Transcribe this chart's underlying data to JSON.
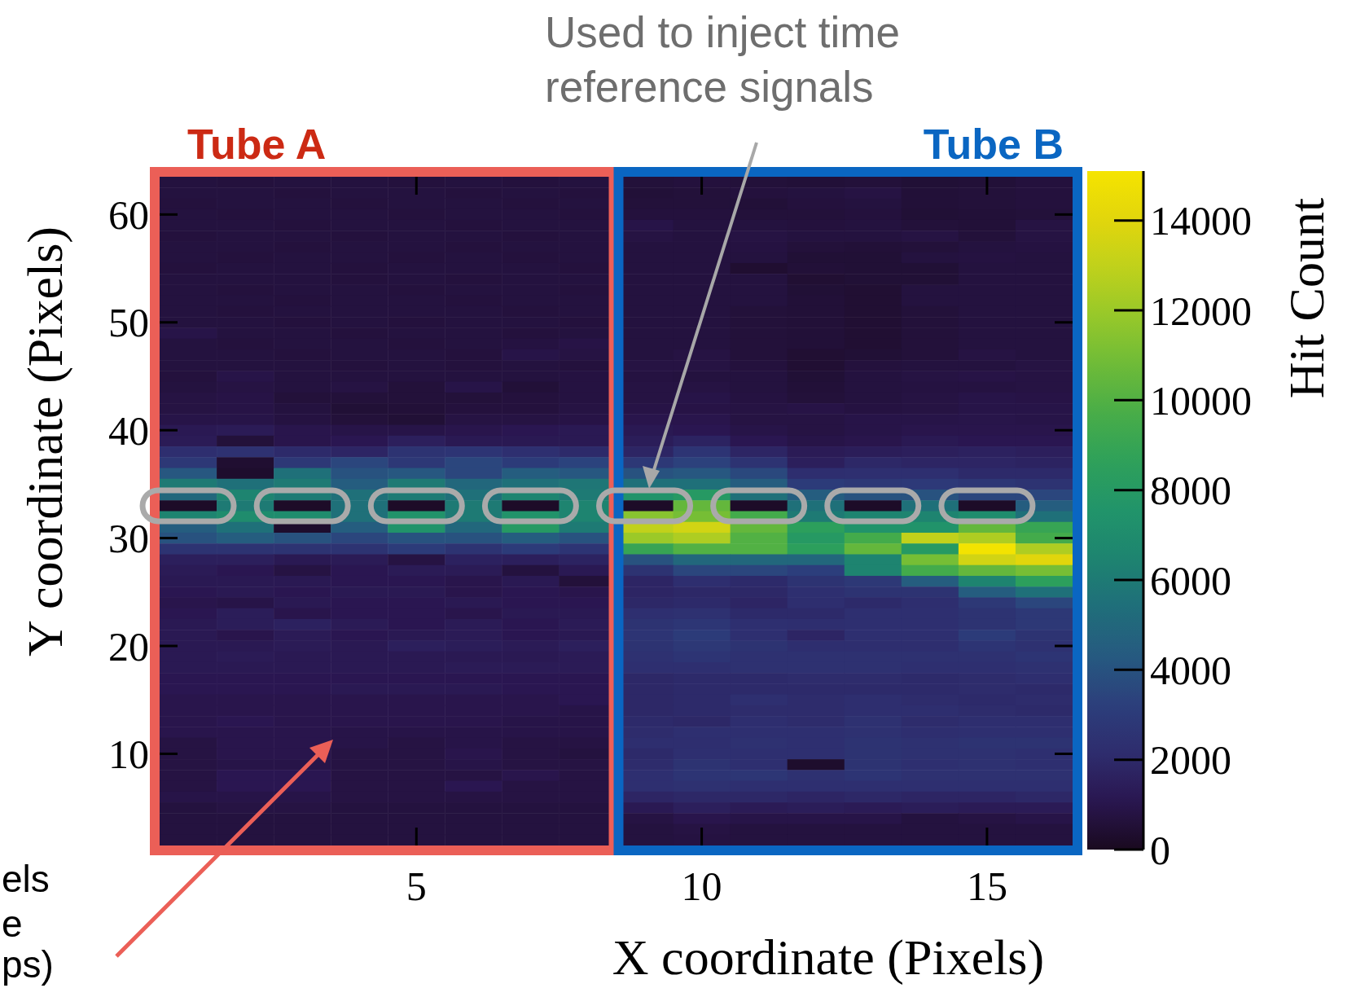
{
  "chart_data": {
    "type": "heatmap",
    "xlabel": "X coordinate (Pixels)",
    "ylabel": "Y coordinate (Pixels)",
    "clabel": "Hit Count",
    "annotations": [
      "Tube A",
      "Tube B",
      "Used to inject time reference signals",
      "els",
      "e",
      "ps)"
    ],
    "categories": [
      null,
      null,
      null,
      null,
      "5",
      null,
      null,
      null,
      null,
      "10",
      null,
      null,
      null,
      null,
      "15",
      null
    ],
    "y_categories": [
      null,
      null,
      null,
      "60",
      null,
      null,
      null,
      null,
      null,
      null,
      null,
      null,
      null,
      "50",
      null,
      null,
      null,
      null,
      null,
      null,
      null,
      null,
      null,
      "40",
      null,
      null,
      null,
      null,
      null,
      null,
      null,
      null,
      null,
      "30",
      null,
      null,
      null,
      null,
      null,
      null,
      null,
      null,
      null,
      "20",
      null,
      null,
      null,
      null,
      null,
      null,
      null,
      null,
      null,
      "10",
      null,
      null,
      null,
      null,
      null,
      null,
      null,
      null
    ],
    "clim": [
      0,
      15100
    ],
    "cticks": [
      0,
      2000,
      4000,
      6000,
      8000,
      10000,
      12000,
      14000
    ],
    "cells": [
      [
        700,
        650,
        700,
        700,
        650,
        700,
        650,
        700,
        600,
        650,
        600,
        550,
        600,
        500,
        550,
        650
      ],
      [
        700,
        700,
        650,
        700,
        700,
        650,
        700,
        650,
        550,
        600,
        650,
        700,
        800,
        550,
        600,
        650
      ],
      [
        650,
        700,
        700,
        650,
        700,
        700,
        650,
        700,
        600,
        600,
        550,
        650,
        700,
        550,
        600,
        650
      ],
      [
        700,
        650,
        700,
        700,
        650,
        700,
        700,
        650,
        650,
        650,
        600,
        600,
        650,
        500,
        550,
        600
      ],
      [
        700,
        700,
        650,
        700,
        700,
        650,
        700,
        700,
        900,
        700,
        700,
        650,
        700,
        600,
        550,
        800
      ],
      [
        650,
        700,
        700,
        650,
        700,
        700,
        650,
        700,
        800,
        700,
        800,
        700,
        700,
        800,
        600,
        800
      ],
      [
        700,
        700,
        650,
        700,
        700,
        650,
        700,
        700,
        700,
        700,
        750,
        600,
        550,
        600,
        700,
        750
      ],
      [
        700,
        650,
        700,
        700,
        650,
        700,
        650,
        700,
        700,
        700,
        700,
        500,
        500,
        700,
        750,
        700
      ],
      [
        650,
        700,
        700,
        650,
        700,
        700,
        700,
        650,
        700,
        700,
        400,
        550,
        500,
        500,
        700,
        700
      ],
      [
        700,
        700,
        700,
        650,
        700,
        650,
        700,
        700,
        700,
        700,
        700,
        450,
        500,
        500,
        700,
        700
      ],
      [
        700,
        650,
        700,
        700,
        650,
        700,
        700,
        650,
        700,
        700,
        700,
        500,
        450,
        700,
        700,
        700
      ],
      [
        700,
        700,
        650,
        700,
        700,
        650,
        700,
        700,
        700,
        700,
        700,
        550,
        450,
        700,
        700,
        700
      ],
      [
        700,
        650,
        700,
        700,
        700,
        700,
        650,
        700,
        700,
        700,
        600,
        550,
        450,
        600,
        700,
        700
      ],
      [
        700,
        700,
        650,
        700,
        650,
        700,
        700,
        650,
        700,
        700,
        600,
        550,
        450,
        600,
        700,
        700
      ],
      [
        900,
        700,
        700,
        650,
        700,
        700,
        650,
        700,
        700,
        700,
        600,
        550,
        450,
        600,
        700,
        700
      ],
      [
        700,
        650,
        700,
        700,
        650,
        700,
        750,
        850,
        700,
        700,
        600,
        550,
        450,
        600,
        700,
        700
      ],
      [
        700,
        700,
        650,
        700,
        700,
        650,
        900,
        800,
        700,
        800,
        600,
        450,
        500,
        600,
        800,
        700
      ],
      [
        700,
        700,
        700,
        650,
        700,
        650,
        700,
        650,
        800,
        800,
        650,
        450,
        650,
        700,
        700,
        800
      ],
      [
        650,
        900,
        700,
        700,
        700,
        700,
        700,
        750,
        750,
        700,
        700,
        500,
        700,
        800,
        850,
        800
      ],
      [
        700,
        800,
        700,
        800,
        600,
        900,
        550,
        750,
        800,
        800,
        700,
        550,
        700,
        750,
        750,
        800
      ],
      [
        800,
        850,
        600,
        600,
        600,
        600,
        650,
        750,
        800,
        900,
        750,
        600,
        700,
        800,
        900,
        850
      ],
      [
        800,
        850,
        700,
        500,
        550,
        650,
        650,
        800,
        850,
        850,
        800,
        850,
        750,
        800,
        900,
        900
      ],
      [
        900,
        900,
        750,
        600,
        500,
        800,
        800,
        850,
        1000,
        1000,
        800,
        800,
        900,
        900,
        950,
        900
      ],
      [
        1200,
        1300,
        1000,
        900,
        900,
        1000,
        1100,
        1200,
        1200,
        1100,
        900,
        800,
        900,
        1000,
        1000,
        1000
      ],
      [
        1300,
        600,
        1000,
        1100,
        1500,
        1200,
        1200,
        1200,
        1400,
        1700,
        1100,
        900,
        1000,
        1200,
        1100,
        1100
      ],
      [
        2200,
        2400,
        2000,
        1800,
        2500,
        2600,
        2300,
        2000,
        1800,
        2600,
        1800,
        1300,
        1400,
        1500,
        1600,
        1500
      ],
      [
        2800,
        400,
        2800,
        3500,
        2800,
        3500,
        3000,
        3400,
        2800,
        3300,
        2500,
        1500,
        1900,
        1800,
        1800,
        1700
      ],
      [
        4200,
        300,
        5500,
        4000,
        4200,
        3500,
        4500,
        4200,
        4000,
        4200,
        3600,
        2200,
        2300,
        2300,
        2000,
        2000
      ],
      [
        6000,
        5500,
        6000,
        4500,
        6000,
        5000,
        5500,
        5800,
        5500,
        5500,
        4500,
        3000,
        2800,
        2900,
        2700,
        2500
      ],
      [
        5000,
        6500,
        6000,
        5500,
        6000,
        5500,
        6500,
        6000,
        7500,
        8000,
        5500,
        4500,
        4000,
        4000,
        3500,
        3500
      ],
      [
        200,
        6000,
        200,
        5500,
        200,
        6000,
        200,
        6500,
        200,
        10500,
        200,
        5500,
        200,
        5500,
        200,
        4500
      ],
      [
        6500,
        7000,
        7000,
        5500,
        7500,
        6000,
        7500,
        6500,
        11500,
        11000,
        9500,
        6000,
        6500,
        6500,
        7000,
        5500
      ],
      [
        4500,
        5500,
        300,
        4500,
        7500,
        5000,
        8000,
        6000,
        13000,
        13500,
        10500,
        8500,
        7500,
        7500,
        10500,
        9000
      ],
      [
        4000,
        4500,
        4000,
        3500,
        4000,
        4000,
        4500,
        4000,
        12000,
        12500,
        10000,
        8000,
        9500,
        13000,
        12500,
        9500
      ],
      [
        2500,
        2500,
        2500,
        2500,
        3000,
        2500,
        3000,
        2600,
        9000,
        10000,
        10000,
        8500,
        10500,
        8000,
        15000,
        12500
      ],
      [
        1500,
        1500,
        1200,
        1300,
        800,
        1600,
        1500,
        1700,
        4000,
        5000,
        5000,
        5000,
        6500,
        11000,
        13500,
        14000
      ],
      [
        1300,
        1100,
        800,
        1100,
        1300,
        1300,
        700,
        1200,
        2500,
        3500,
        3500,
        3200,
        6500,
        9500,
        10500,
        11000
      ],
      [
        1200,
        1200,
        1200,
        1100,
        1100,
        1000,
        1200,
        600,
        1800,
        2200,
        2000,
        2500,
        2800,
        4500,
        6500,
        8500
      ],
      [
        1100,
        1200,
        1100,
        1200,
        1200,
        1000,
        1100,
        1000,
        1800,
        1900,
        1900,
        2300,
        2500,
        2500,
        4500,
        5500
      ],
      [
        1000,
        900,
        1200,
        1100,
        1100,
        1200,
        1100,
        1100,
        1900,
        2000,
        1800,
        2200,
        2000,
        2200,
        2800,
        3500
      ],
      [
        1100,
        1400,
        1000,
        1100,
        1100,
        1000,
        1200,
        1200,
        2300,
        2400,
        2000,
        2000,
        2300,
        2300,
        2500,
        2800
      ],
      [
        1200,
        1400,
        1600,
        1300,
        1100,
        1300,
        1100,
        1300,
        2500,
        2700,
        2300,
        2200,
        2300,
        2300,
        2500,
        2800
      ],
      [
        1200,
        1000,
        1300,
        1100,
        1200,
        1300,
        1100,
        1200,
        2600,
        3000,
        2300,
        1800,
        2300,
        2300,
        3000,
        2500
      ],
      [
        1200,
        1200,
        1300,
        1200,
        1500,
        1400,
        1300,
        1500,
        2500,
        2800,
        2500,
        2200,
        2200,
        2200,
        2600,
        2400
      ],
      [
        1200,
        1300,
        1200,
        1200,
        1200,
        1200,
        1200,
        1300,
        2400,
        2600,
        2400,
        2400,
        2400,
        2400,
        2400,
        2600
      ],
      [
        1200,
        1200,
        1200,
        1200,
        1200,
        1300,
        1300,
        1300,
        2300,
        2300,
        2400,
        2400,
        2400,
        2300,
        2300,
        2400
      ],
      [
        1100,
        1100,
        1100,
        1100,
        1100,
        1100,
        1100,
        1100,
        1900,
        2000,
        2000,
        2100,
        2100,
        2000,
        2100,
        2200
      ],
      [
        1100,
        1100,
        1100,
        1200,
        1200,
        1200,
        1100,
        1100,
        1900,
        2000,
        2000,
        2000,
        2000,
        2000,
        2100,
        2000
      ],
      [
        1000,
        1000,
        1000,
        1000,
        1000,
        1000,
        1000,
        1100,
        1900,
        2000,
        2300,
        2100,
        2200,
        2100,
        2000,
        2100
      ],
      [
        1000,
        1000,
        1000,
        1000,
        1000,
        1000,
        1000,
        900,
        1900,
        2000,
        2100,
        2100,
        2200,
        2200,
        2100,
        2000
      ],
      [
        1000,
        1100,
        1000,
        1000,
        1000,
        1000,
        900,
        900,
        2000,
        1900,
        2200,
        2100,
        2400,
        2100,
        2200,
        2200
      ],
      [
        1000,
        1000,
        1000,
        900,
        900,
        900,
        900,
        900,
        2100,
        2300,
        2300,
        2300,
        2400,
        2200,
        2300,
        2300
      ],
      [
        800,
        1000,
        1000,
        900,
        800,
        900,
        800,
        800,
        2200,
        2200,
        2400,
        2300,
        2500,
        2400,
        2500,
        2500
      ],
      [
        800,
        1000,
        1000,
        800,
        800,
        1000,
        800,
        700,
        2000,
        2300,
        2300,
        2300,
        2500,
        2400,
        2400,
        2300
      ],
      [
        800,
        900,
        900,
        800,
        800,
        900,
        800,
        800,
        2100,
        2500,
        2300,
        300,
        2500,
        2300,
        2400,
        2300
      ],
      [
        800,
        1100,
        1100,
        800,
        800,
        800,
        1000,
        800,
        2300,
        2600,
        2700,
        2400,
        2600,
        2400,
        2400,
        2400
      ],
      [
        800,
        1100,
        1100,
        800,
        800,
        1100,
        800,
        800,
        2300,
        2400,
        2300,
        2300,
        2300,
        2300,
        2300,
        2300
      ],
      [
        900,
        900,
        900,
        800,
        800,
        800,
        800,
        800,
        1800,
        1900,
        1900,
        1800,
        1900,
        1800,
        1800,
        1900
      ],
      [
        700,
        800,
        800,
        700,
        700,
        700,
        700,
        700,
        1200,
        1500,
        1300,
        1400,
        1300,
        1400,
        1300,
        1300
      ],
      [
        700,
        700,
        700,
        700,
        700,
        700,
        700,
        700,
        800,
        1000,
        900,
        900,
        900,
        700,
        800,
        900
      ],
      [
        700,
        700,
        700,
        700,
        700,
        700,
        700,
        700,
        700,
        800,
        700,
        700,
        700,
        700,
        700,
        700
      ],
      [
        700,
        700,
        700,
        700,
        700,
        700,
        700,
        700,
        700,
        750,
        700,
        700,
        700,
        700,
        700,
        700
      ]
    ]
  }
}
